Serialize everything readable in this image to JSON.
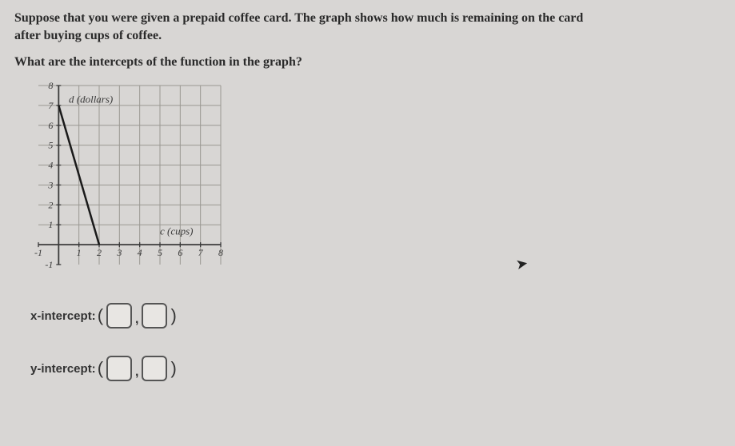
{
  "prompt": {
    "line1": "Suppose that you were given a prepaid coffee card. The graph shows how much is remaining on the card",
    "line2": "after buying cups of coffee.",
    "question": "What are the intercepts of the function in the graph?"
  },
  "chart": {
    "type": "line",
    "y_axis_label": "d (dollars)",
    "x_axis_label": "c (cups)",
    "xlim": [
      -1,
      8
    ],
    "ylim": [
      -1,
      8
    ],
    "xticks": [
      -1,
      1,
      2,
      3,
      4,
      5,
      6,
      7,
      8
    ],
    "yticks": [
      -1,
      1,
      2,
      3,
      4,
      5,
      6,
      7,
      8
    ],
    "grid_color": "#9a9892",
    "axis_color": "#3a3a3a",
    "line_color": "#1a1a1a",
    "background_color": "#d8d6d4",
    "tick_label_color": "#3a3a3a",
    "tick_fontsize": 12,
    "label_fontsize": 13,
    "line_width": 2.5,
    "points": [
      {
        "x": 0,
        "y": 7
      },
      {
        "x": 2,
        "y": 0
      }
    ]
  },
  "intercepts": {
    "x_label": "x-intercept:",
    "y_label": "y-intercept:",
    "x_value_a": "",
    "x_value_b": "",
    "y_value_a": "",
    "y_value_b": ""
  }
}
